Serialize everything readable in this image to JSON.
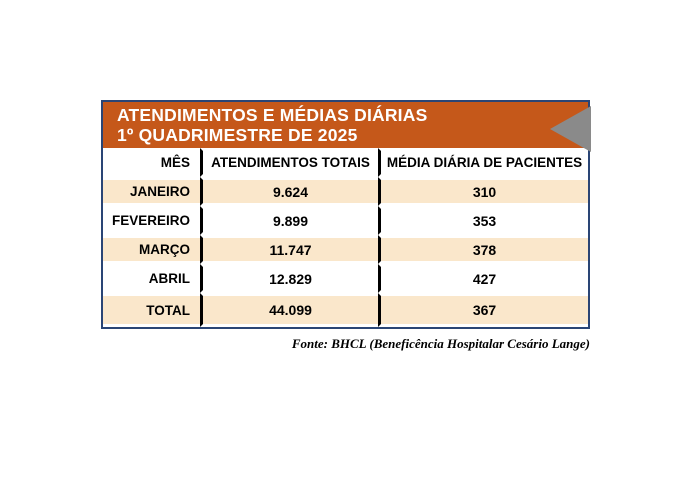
{
  "banner": {
    "title_line1": "ATENDIMENTOS E MÉDIAS DIÁRIAS",
    "title_line2": "1º QUADRIMESTRE DE 2025"
  },
  "table": {
    "columns": [
      "MÊS",
      "ATENDIMENTOS TOTAIS",
      "MÉDIA DIÁRIA DE PACIENTES"
    ],
    "rows": [
      {
        "mes": "JANEIRO",
        "total": "9.624",
        "media": "310"
      },
      {
        "mes": "FEVEREIRO",
        "total": "9.899",
        "media": "353"
      },
      {
        "mes": "MARÇO",
        "total": "11.747",
        "media": "378"
      },
      {
        "mes": "ABRIL",
        "total": "12.829",
        "media": "427"
      },
      {
        "mes": "TOTAL",
        "total": "44.099",
        "media": "367"
      }
    ]
  },
  "footer": {
    "source": "Fonte: BHCL (Beneficência Hospitalar Cesário Lange)"
  },
  "colors": {
    "banner_orange": "#C5581A",
    "border_navy": "#2A4575",
    "stripe_cream": "#FAE7CB",
    "triangle_gray": "#8A8A8A",
    "text_black": "#000000",
    "text_white": "#FFFFFF"
  },
  "chart_data": {
    "type": "table",
    "title": "ATENDIMENTOS E MÉDIAS DIÁRIAS — 1º QUADRIMESTRE DE 2025",
    "columns": [
      "MÊS",
      "ATENDIMENTOS TOTAIS",
      "MÉDIA DIÁRIA DE PACIENTES"
    ],
    "rows": [
      [
        "JANEIRO",
        9624,
        310
      ],
      [
        "FEVEREIRO",
        9899,
        353
      ],
      [
        "MARÇO",
        11747,
        378
      ],
      [
        "ABRIL",
        12829,
        427
      ],
      [
        "TOTAL",
        44099,
        367
      ]
    ],
    "source": "Fonte: BHCL (Beneficência Hospitalar Cesário Lange)"
  }
}
